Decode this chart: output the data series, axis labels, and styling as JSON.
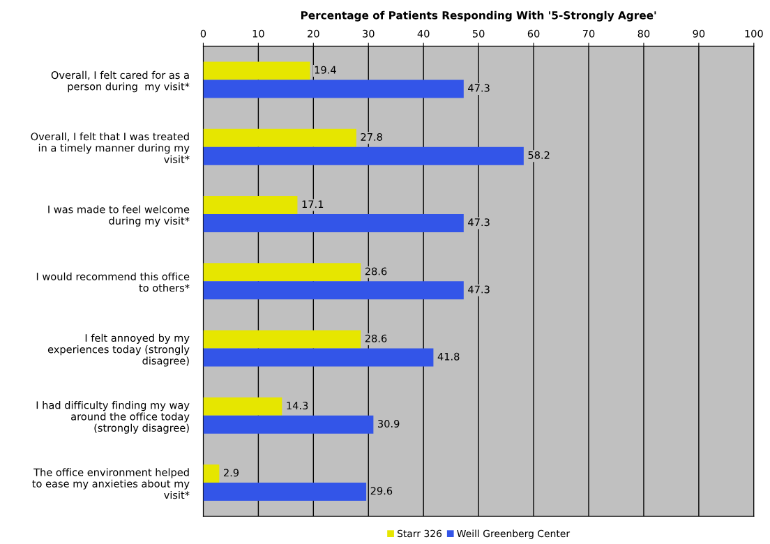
{
  "chart_data": {
    "type": "bar",
    "orientation": "horizontal",
    "title": "Percentage of Patients Responding With '5-Strongly Agree'",
    "categories": [
      "Overall, I felt cared for as a\nperson during  my visit*",
      "Overall, I felt that I was treated\nin a timely manner during my\nvisit*",
      "I was made to feel welcome\nduring my visit*",
      "I would recommend this office\nto others*",
      "I felt annoyed by my\nexperiences today (strongly\ndisagree)",
      "I had difficulty finding my way\naround the office today\n(strongly disagree)",
      "The office environment helped\nto ease my anxieties about my\nvisit*"
    ],
    "series": [
      {
        "name": "Starr 326",
        "color": "#e6e600",
        "values": [
          19.4,
          27.8,
          17.1,
          28.6,
          28.6,
          14.3,
          2.9
        ]
      },
      {
        "name": "Weill Greenberg Center",
        "color": "#3355e8",
        "values": [
          47.3,
          58.2,
          47.3,
          47.3,
          41.8,
          30.9,
          29.6
        ]
      }
    ],
    "xlim": [
      0,
      100
    ],
    "xticks": [
      0,
      10,
      20,
      30,
      40,
      50,
      60,
      70,
      80,
      90,
      100
    ],
    "grid": "x",
    "legend": "bottom",
    "data_labels": true
  }
}
